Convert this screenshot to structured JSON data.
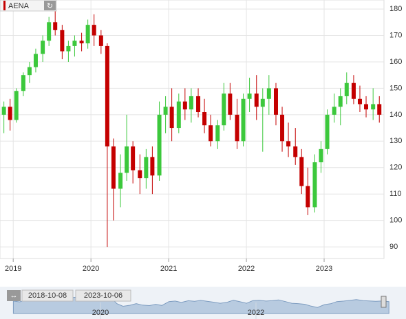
{
  "ticker": "AENA",
  "navigator": {
    "start": "2018-10-08",
    "end": "2023-10-06",
    "ticks": [
      2020,
      2022
    ]
  },
  "chart_data": {
    "type": "candlestick",
    "x": [
      2018.88,
      2018.96,
      2019.04,
      2019.13,
      2019.21,
      2019.29,
      2019.38,
      2019.46,
      2019.54,
      2019.63,
      2019.71,
      2019.79,
      2019.88,
      2019.96,
      2020.04,
      2020.13,
      2020.21,
      2020.29,
      2020.38,
      2020.46,
      2020.54,
      2020.63,
      2020.71,
      2020.79,
      2020.88,
      2020.96,
      2021.04,
      2021.13,
      2021.21,
      2021.29,
      2021.38,
      2021.46,
      2021.54,
      2021.63,
      2021.71,
      2021.79,
      2021.88,
      2021.96,
      2022.04,
      2022.13,
      2022.21,
      2022.29,
      2022.38,
      2022.46,
      2022.54,
      2022.63,
      2022.71,
      2022.79,
      2022.88,
      2022.96,
      2023.04,
      2023.13,
      2023.21,
      2023.29,
      2023.38,
      2023.46,
      2023.54,
      2023.63,
      2023.71
    ],
    "open": [
      140,
      143,
      138,
      149,
      155,
      158,
      163,
      168,
      175,
      172,
      164,
      166,
      168,
      167,
      174,
      170,
      166,
      128,
      112,
      118,
      128,
      119,
      116,
      124,
      117,
      140,
      143,
      135,
      145,
      142,
      147,
      141,
      136,
      130,
      136,
      148,
      140,
      130,
      146,
      148,
      143,
      146,
      150,
      140,
      130,
      128,
      124,
      113,
      105,
      122,
      127,
      140,
      143,
      147,
      152,
      146,
      144,
      142,
      144
    ],
    "high": [
      145,
      146,
      150,
      156,
      160,
      165,
      170,
      177,
      181,
      174,
      168,
      170,
      171,
      176,
      178,
      172,
      167,
      131,
      125,
      140,
      130,
      125,
      127,
      128,
      145,
      147,
      150,
      148,
      150,
      150,
      150,
      146,
      140,
      138,
      152,
      152,
      146,
      148,
      154,
      155,
      150,
      155,
      152,
      143,
      137,
      135,
      127,
      120,
      125,
      130,
      142,
      148,
      150,
      156,
      155,
      151,
      147,
      150,
      147
    ],
    "low": [
      133,
      134,
      137,
      147,
      152,
      156,
      160,
      166,
      170,
      161,
      160,
      162,
      164,
      165,
      166,
      163,
      90,
      100,
      105,
      115,
      114,
      110,
      112,
      110,
      115,
      133,
      130,
      133,
      138,
      137,
      139,
      133,
      128,
      127,
      134,
      138,
      127,
      128,
      141,
      138,
      126,
      140,
      136,
      126,
      124,
      121,
      110,
      102,
      103,
      118,
      125,
      137,
      136,
      144,
      144,
      141,
      139,
      138,
      137
    ],
    "close": [
      143,
      138,
      149,
      155,
      158,
      163,
      168,
      175,
      172,
      164,
      166,
      168,
      167,
      174,
      170,
      166,
      128,
      112,
      118,
      128,
      119,
      116,
      124,
      117,
      140,
      143,
      135,
      145,
      142,
      147,
      141,
      136,
      130,
      136,
      148,
      140,
      130,
      146,
      148,
      143,
      146,
      150,
      140,
      130,
      128,
      124,
      113,
      105,
      122,
      127,
      140,
      143,
      147,
      152,
      146,
      144,
      142,
      144,
      140
    ],
    "up_color": "#3cc83c",
    "down_color": "#c40000",
    "xlim": [
      2018.83,
      2023.77
    ],
    "xticks": [
      2019,
      2020,
      2021,
      2022,
      2023
    ],
    "ylim": [
      85.6,
      183.4
    ],
    "yticks": [
      90,
      100,
      110,
      120,
      130,
      140,
      150,
      160,
      170,
      180
    ],
    "grid": true
  }
}
